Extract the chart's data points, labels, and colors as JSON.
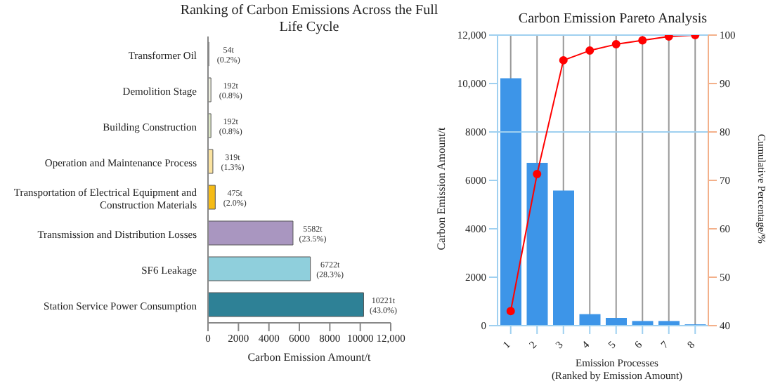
{
  "chart_data": [
    {
      "type": "bar",
      "orientation": "horizontal",
      "title": "Ranking of Carbon Emissions Across the Full Life Cycle",
      "xlabel": "Carbon Emission Amount/t",
      "categories": [
        "Transformer Oil",
        "Demolition Stage",
        "Building Construction",
        "Operation and Maintenance Process",
        "Transportation of Electrical Equipment and Construction Materials",
        "Transmission and Distribution Losses",
        "SF6 Leakage",
        "Station Service Power Consumption"
      ],
      "values": [
        54,
        192,
        192,
        319,
        475,
        5582,
        6722,
        10221
      ],
      "colors": [
        "#9a9a9a",
        "#eef0e0",
        "#dfe9c8",
        "#fbe3a0",
        "#f5bb16",
        "#a996c0",
        "#8fcfdc",
        "#2e8196"
      ],
      "value_labels": [
        "54t",
        "192t",
        "192t",
        "319t",
        "475t",
        "5582t",
        "6722t",
        "10221t"
      ],
      "annotations": [
        "(0.2%)",
        "(0.8%)",
        "(0.8%)",
        "(1.3%)",
        "(2.0%)",
        "(23.5%)",
        "(28.3%)",
        "(43.0%)"
      ],
      "xlim": [
        0,
        12000
      ],
      "xticks": [
        0,
        2000,
        4000,
        6000,
        8000,
        10000,
        {
          "value": 12000,
          "label": "12,000"
        }
      ]
    },
    {
      "type": "bar",
      "title": "Carbon Emission Pareto Analysis",
      "xlabel": "Emission Processes (Ranked by Emission Amount)",
      "ylabel": "Carbon Emission Amount/t",
      "y2label": "Cumulative Percentage/%",
      "categories": [
        "1",
        "2",
        "3",
        "4",
        "5",
        "6",
        "7",
        "8"
      ],
      "series": [
        {
          "color": "#3d95e8",
          "values": [
            10221,
            6722,
            5582,
            475,
            319,
            192,
            192,
            54
          ]
        },
        {
          "type": "line",
          "axis": "y2",
          "color": "#ff0000",
          "marker": "circle",
          "values": [
            43.0,
            71.3,
            94.8,
            96.8,
            98.1,
            98.9,
            99.7,
            100
          ]
        }
      ],
      "ylim": [
        0,
        12000
      ],
      "yticks": [
        0,
        2000,
        4000,
        6000,
        8000,
        {
          "value": 10000,
          "label": "10,000"
        },
        {
          "value": 12000,
          "label": "12,000"
        }
      ],
      "y2lim": [
        40,
        100
      ],
      "y2ticks": [
        40,
        50,
        60,
        70,
        80,
        90,
        100
      ],
      "ref_lines": [
        {
          "axis": "y2",
          "value": 80,
          "color": "#9fd0f0"
        }
      ],
      "grid": "x"
    }
  ]
}
